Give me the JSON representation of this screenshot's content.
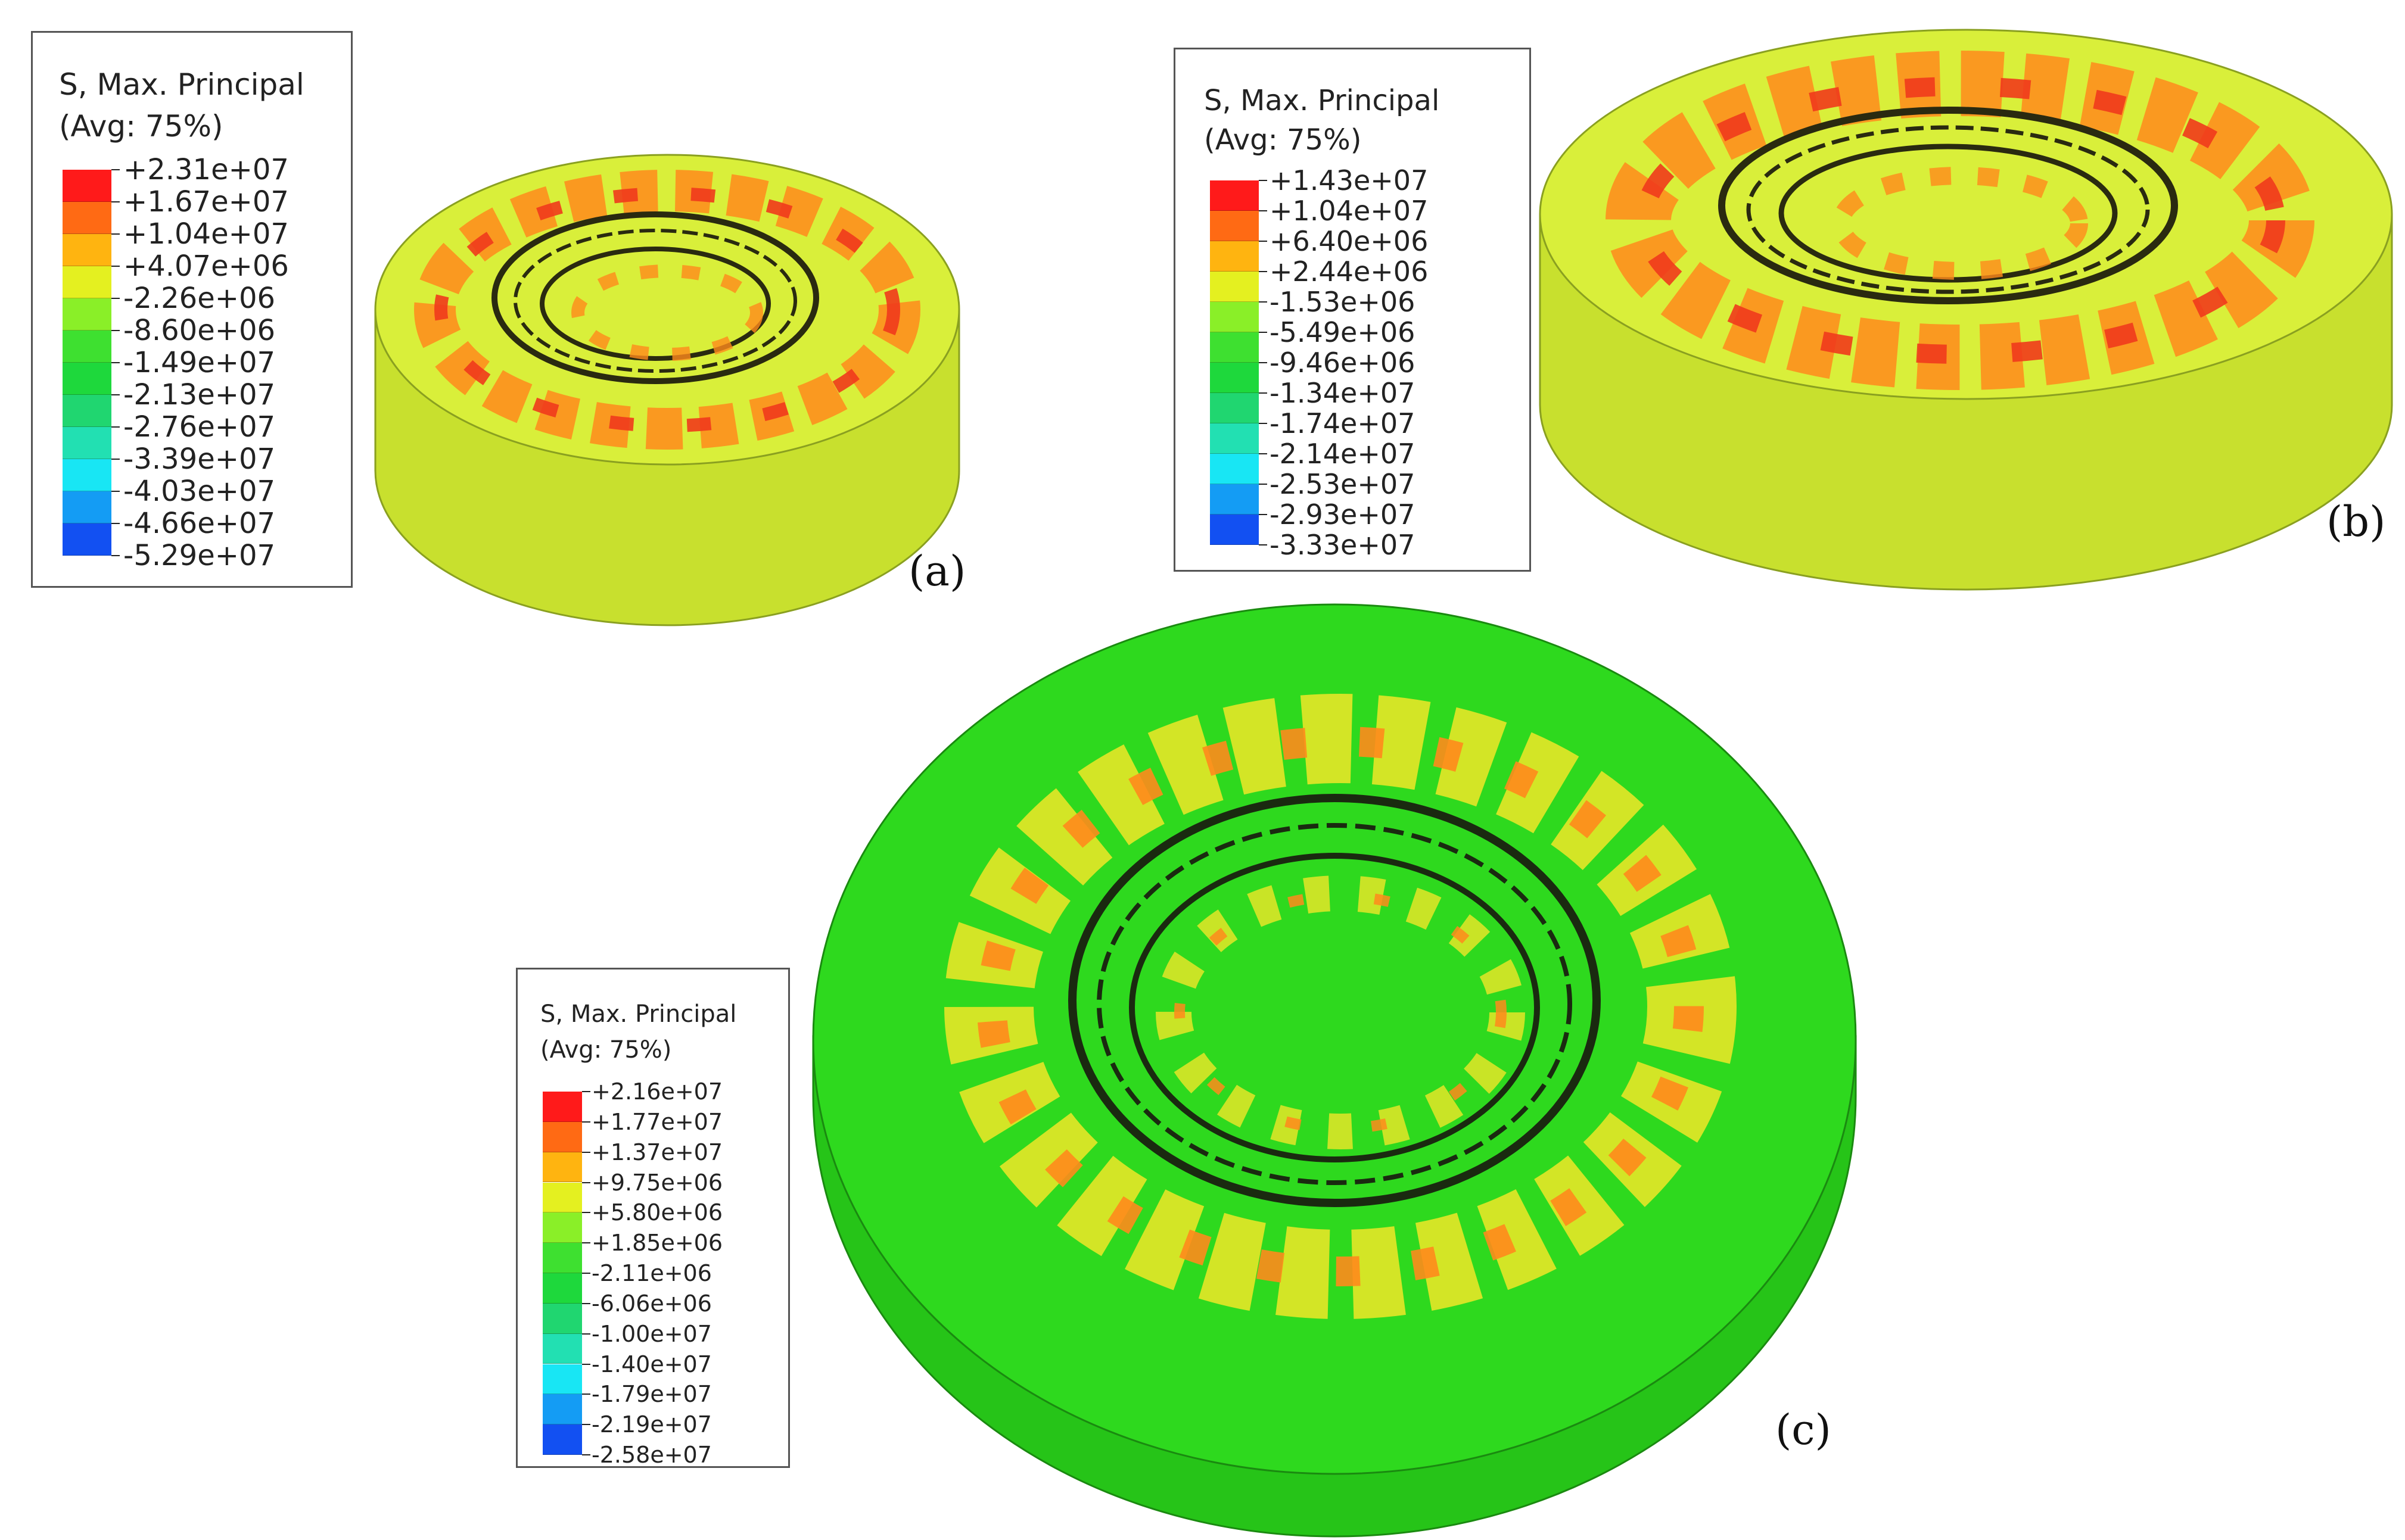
{
  "panels": [
    {
      "id": "a",
      "label": "(a)",
      "legend": {
        "title": "S, Max. Principal",
        "subtitle": "(Avg: 75%)",
        "values": [
          "+2.31e+07",
          "+1.67e+07",
          "+1.04e+07",
          "+4.07e+06",
          "-2.26e+06",
          "-8.60e+06",
          "-1.49e+07",
          "-2.13e+07",
          "-2.76e+07",
          "-3.39e+07",
          "-4.03e+07",
          "-4.66e+07",
          "-5.29e+07"
        ],
        "colors": [
          "#ff1a1a",
          "#ff6a14",
          "#ffb410",
          "#e4f020",
          "#8aef28",
          "#3ee030",
          "#1ed83c",
          "#20d670",
          "#22e0b2",
          "#18e6f4",
          "#149cf4",
          "#1250f2",
          "#0a12f0"
        ]
      },
      "disc": {
        "top": "#d9ef3a",
        "side": "#c8e02e",
        "ring": "#ff8a1c",
        "hot": "#f03a1c"
      }
    },
    {
      "id": "b",
      "label": "(b)",
      "legend": {
        "title": "S, Max. Principal",
        "subtitle": "(Avg: 75%)",
        "values": [
          "+1.43e+07",
          "+1.04e+07",
          "+6.40e+06",
          "+2.44e+06",
          "-1.53e+06",
          "-5.49e+06",
          "-9.46e+06",
          "-1.34e+07",
          "-1.74e+07",
          "-2.14e+07",
          "-2.53e+07",
          "-2.93e+07",
          "-3.33e+07"
        ],
        "colors": [
          "#ff1a1a",
          "#ff6a14",
          "#ffb410",
          "#e4f020",
          "#8aef28",
          "#3ee030",
          "#1ed83c",
          "#20d670",
          "#22e0b2",
          "#18e6f4",
          "#149cf4",
          "#1250f2",
          "#0a12f0"
        ]
      },
      "disc": {
        "top": "#d9ef3a",
        "side": "#c8e02e",
        "ring": "#ff8a1c",
        "hot": "#f03a1c"
      }
    },
    {
      "id": "c",
      "label": "(c)",
      "legend": {
        "title": "S, Max. Principal",
        "subtitle": "(Avg: 75%)",
        "values": [
          "+2.16e+07",
          "+1.77e+07",
          "+1.37e+07",
          "+9.75e+06",
          "+5.80e+06",
          "+1.85e+06",
          "-2.11e+06",
          "-6.06e+06",
          "-1.00e+07",
          "-1.40e+07",
          "-1.79e+07",
          "-2.19e+07",
          "-2.58e+07"
        ],
        "colors": [
          "#ff1a1a",
          "#ff6a14",
          "#ffb410",
          "#e4f020",
          "#8aef28",
          "#3ee030",
          "#1ed83c",
          "#20d670",
          "#22e0b2",
          "#18e6f4",
          "#149cf4",
          "#1250f2",
          "#0a12f0"
        ]
      },
      "disc": {
        "top": "#2ed91e",
        "side": "#26c418",
        "ring": "#f0e628",
        "hot": "#ff8a1c"
      }
    }
  ]
}
